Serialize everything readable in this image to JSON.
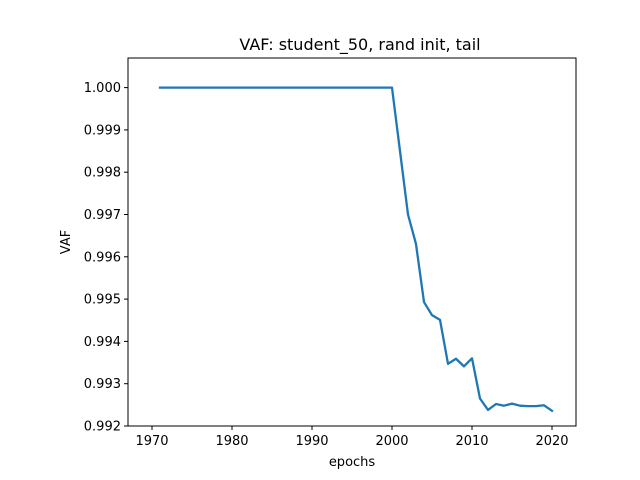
{
  "chart_data": {
    "type": "line",
    "title": "VAF: student_50, rand init, tail",
    "xlabel": "epochs",
    "ylabel": "VAF",
    "xlim": [
      1967,
      2023
    ],
    "ylim": [
      0.992,
      1.0007
    ],
    "xticks": [
      1970,
      1980,
      1990,
      2000,
      2010,
      2020
    ],
    "xtick_labels": [
      "1970",
      "1980",
      "1990",
      "2000",
      "2010",
      "2020"
    ],
    "yticks": [
      0.992,
      0.993,
      0.994,
      0.995,
      0.996,
      0.997,
      0.998,
      0.999,
      1.0
    ],
    "ytick_labels": [
      "0.992",
      "0.993",
      "0.994",
      "0.995",
      "0.996",
      "0.997",
      "0.998",
      "0.999",
      "1.000"
    ],
    "grid": false,
    "colors": {
      "series": "#1f77b4",
      "axes": "#000000",
      "background": "#ffffff"
    },
    "series": [
      {
        "x": [
          1971,
          1972,
          1973,
          1974,
          1975,
          1976,
          1977,
          1978,
          1979,
          1980,
          1981,
          1982,
          1983,
          1984,
          1985,
          1986,
          1987,
          1988,
          1989,
          1990,
          1991,
          1992,
          1993,
          1994,
          1995,
          1996,
          1997,
          1998,
          1999,
          2000,
          2001,
          2002,
          2003,
          2004,
          2005,
          2006,
          2007,
          2008,
          2009,
          2010,
          2011,
          2012,
          2013,
          2014,
          2015,
          2016,
          2017,
          2018,
          2019,
          2020
        ],
        "y": [
          1.0,
          1.0,
          1.0,
          1.0,
          1.0,
          1.0,
          1.0,
          1.0,
          1.0,
          1.0,
          1.0,
          1.0,
          1.0,
          1.0,
          1.0,
          1.0,
          1.0,
          1.0,
          1.0,
          1.0,
          1.0,
          1.0,
          1.0,
          1.0,
          1.0,
          1.0,
          1.0,
          1.0,
          1.0,
          1.0,
          0.9985,
          0.997,
          0.9963,
          0.99493,
          0.99462,
          0.99451,
          0.99347,
          0.99359,
          0.99341,
          0.9936,
          0.99265,
          0.99238,
          0.99252,
          0.99248,
          0.99253,
          0.99248,
          0.99247,
          0.99247,
          0.99249,
          0.99236
        ]
      }
    ]
  }
}
